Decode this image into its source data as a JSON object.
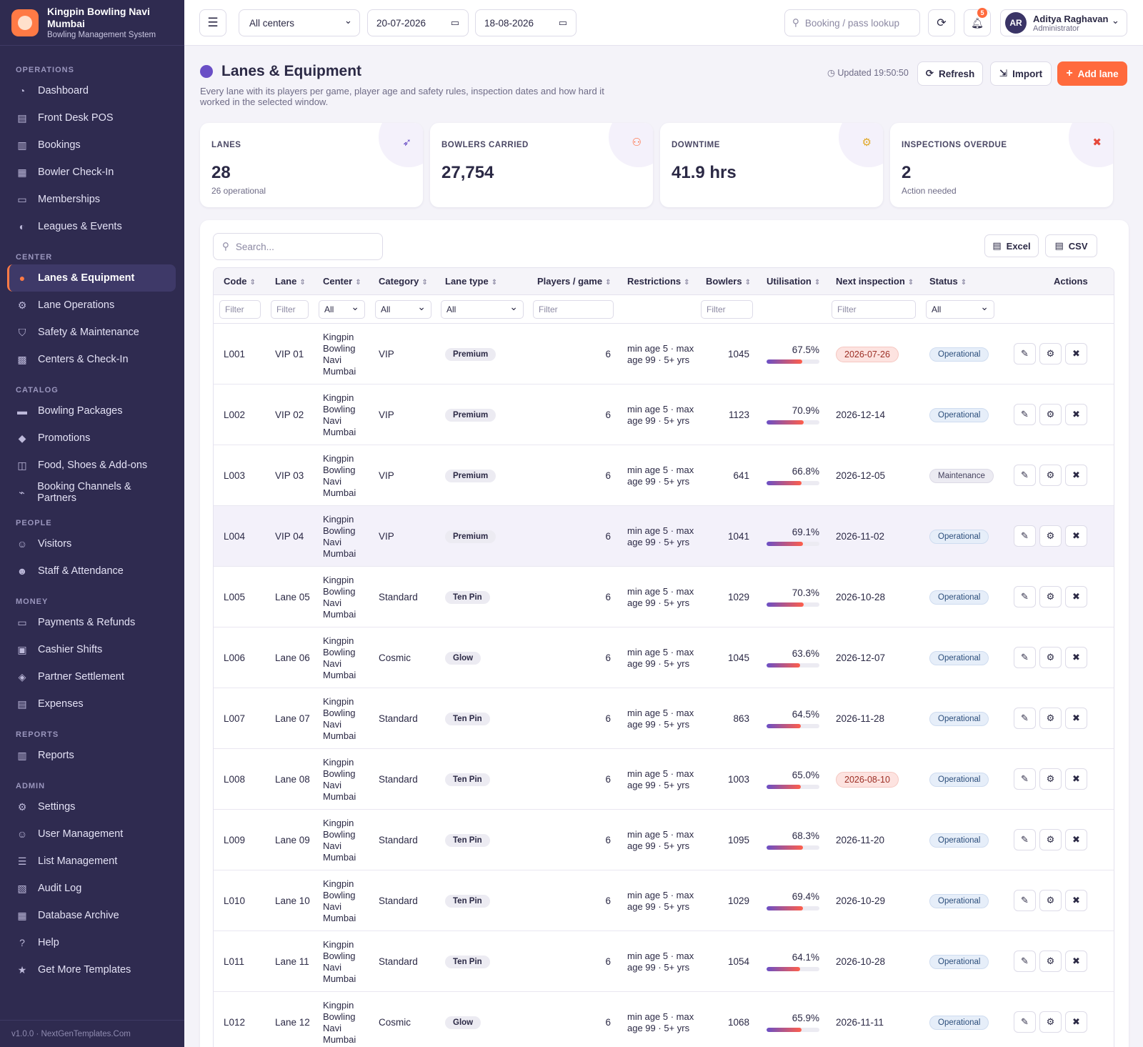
{
  "brand": {
    "name": "Kingpin Bowling Navi Mumbai",
    "subtitle": "Bowling Management System"
  },
  "nav": {
    "operations": {
      "label": "OPERATIONS",
      "items": [
        "Dashboard",
        "Front Desk POS",
        "Bookings",
        "Bowler Check-In",
        "Memberships",
        "Leagues & Events"
      ]
    },
    "center": {
      "label": "CENTER",
      "items": [
        "Lanes & Equipment",
        "Lane Operations",
        "Safety & Maintenance",
        "Centers & Check-In"
      ]
    },
    "catalog": {
      "label": "CATALOG",
      "items": [
        "Bowling Packages",
        "Promotions",
        "Food, Shoes & Add-ons",
        "Booking Channels & Partners"
      ]
    },
    "people": {
      "label": "PEOPLE",
      "items": [
        "Visitors",
        "Staff & Attendance"
      ]
    },
    "money": {
      "label": "MONEY",
      "items": [
        "Payments & Refunds",
        "Cashier Shifts",
        "Partner Settlement",
        "Expenses"
      ]
    },
    "reports": {
      "label": "REPORTS",
      "items": [
        "Reports"
      ]
    },
    "admin": {
      "label": "ADMIN",
      "items": [
        "Settings",
        "User Management",
        "List Management",
        "Audit Log",
        "Database Archive",
        "Help",
        "Get More Templates"
      ]
    }
  },
  "footer": "v1.0.0 · NextGenTemplates.Com",
  "topbar": {
    "center_select": "All centers",
    "date_from": "20-07-2026",
    "date_to": "18-08-2026",
    "lookup_placeholder": "Booking / pass lookup",
    "notif_count": "5",
    "user": {
      "initials": "AR",
      "name": "Aditya Raghavan",
      "role": "Administrator"
    }
  },
  "page": {
    "title": "Lanes & Equipment",
    "description": "Every lane with its players per game, player age and safety rules, inspection dates and how hard it worked in the selected window.",
    "updated": "Updated 19:50:50",
    "refresh": "Refresh",
    "import": "Import",
    "add": "Add lane"
  },
  "kpis": [
    {
      "label": "LANES",
      "value": "28",
      "sub": "26 operational",
      "icon": "rocket-icon",
      "color": "#6a4fc6"
    },
    {
      "label": "BOWLERS CARRIED",
      "value": "27,754",
      "sub": "",
      "icon": "users-icon",
      "color": "#ff6a3d"
    },
    {
      "label": "DOWNTIME",
      "value": "41.9 hrs",
      "sub": "",
      "icon": "gears-icon",
      "color": "#e0a92a"
    },
    {
      "label": "INSPECTIONS OVERDUE",
      "value": "2",
      "sub": "Action needed",
      "icon": "tools-icon",
      "color": "#e5483b"
    }
  ],
  "table": {
    "search_placeholder": "Search...",
    "excel": "Excel",
    "csv": "CSV",
    "headers": {
      "code": "Code",
      "lane": "Lane",
      "center": "Center",
      "category": "Category",
      "lane_type": "Lane type",
      "players": "Players / game",
      "restrictions": "Restrictions",
      "bowlers": "Bowlers",
      "utilisation": "Utilisation",
      "next_inspection": "Next inspection",
      "status": "Status",
      "actions": "Actions"
    },
    "filters": {
      "text": "Filter",
      "all": "All"
    },
    "rows": [
      {
        "code": "L001",
        "lane": "VIP 01",
        "center": "Kingpin Bowling Navi Mumbai",
        "category": "VIP",
        "type": "Premium",
        "players": "6",
        "restr": "min age 5 · max age 99 · 5+ yrs",
        "bowlers": "1045",
        "util": "67.5%",
        "util_v": 67.5,
        "insp": "2026-07-26",
        "overdue": true,
        "status": "Operational"
      },
      {
        "code": "L002",
        "lane": "VIP 02",
        "center": "Kingpin Bowling Navi Mumbai",
        "category": "VIP",
        "type": "Premium",
        "players": "6",
        "restr": "min age 5 · max age 99 · 5+ yrs",
        "bowlers": "1123",
        "util": "70.9%",
        "util_v": 70.9,
        "insp": "2026-12-14",
        "overdue": false,
        "status": "Operational"
      },
      {
        "code": "L003",
        "lane": "VIP 03",
        "center": "Kingpin Bowling Navi Mumbai",
        "category": "VIP",
        "type": "Premium",
        "players": "6",
        "restr": "min age 5 · max age 99 · 5+ yrs",
        "bowlers": "641",
        "util": "66.8%",
        "util_v": 66.8,
        "insp": "2026-12-05",
        "overdue": false,
        "status": "Maintenance"
      },
      {
        "code": "L004",
        "lane": "VIP 04",
        "center": "Kingpin Bowling Navi Mumbai",
        "category": "VIP",
        "type": "Premium",
        "players": "6",
        "restr": "min age 5 · max age 99 · 5+ yrs",
        "bowlers": "1041",
        "util": "69.1%",
        "util_v": 69.1,
        "insp": "2026-11-02",
        "overdue": false,
        "status": "Operational"
      },
      {
        "code": "L005",
        "lane": "Lane 05",
        "center": "Kingpin Bowling Navi Mumbai",
        "category": "Standard",
        "type": "Ten Pin",
        "players": "6",
        "restr": "min age 5 · max age 99 · 5+ yrs",
        "bowlers": "1029",
        "util": "70.3%",
        "util_v": 70.3,
        "insp": "2026-10-28",
        "overdue": false,
        "status": "Operational"
      },
      {
        "code": "L006",
        "lane": "Lane 06",
        "center": "Kingpin Bowling Navi Mumbai",
        "category": "Cosmic",
        "type": "Glow",
        "players": "6",
        "restr": "min age 5 · max age 99 · 5+ yrs",
        "bowlers": "1045",
        "util": "63.6%",
        "util_v": 63.6,
        "insp": "2026-12-07",
        "overdue": false,
        "status": "Operational"
      },
      {
        "code": "L007",
        "lane": "Lane 07",
        "center": "Kingpin Bowling Navi Mumbai",
        "category": "Standard",
        "type": "Ten Pin",
        "players": "6",
        "restr": "min age 5 · max age 99 · 5+ yrs",
        "bowlers": "863",
        "util": "64.5%",
        "util_v": 64.5,
        "insp": "2026-11-28",
        "overdue": false,
        "status": "Operational"
      },
      {
        "code": "L008",
        "lane": "Lane 08",
        "center": "Kingpin Bowling Navi Mumbai",
        "category": "Standard",
        "type": "Ten Pin",
        "players": "6",
        "restr": "min age 5 · max age 99 · 5+ yrs",
        "bowlers": "1003",
        "util": "65.0%",
        "util_v": 65.0,
        "insp": "2026-08-10",
        "overdue": true,
        "status": "Operational"
      },
      {
        "code": "L009",
        "lane": "Lane 09",
        "center": "Kingpin Bowling Navi Mumbai",
        "category": "Standard",
        "type": "Ten Pin",
        "players": "6",
        "restr": "min age 5 · max age 99 · 5+ yrs",
        "bowlers": "1095",
        "util": "68.3%",
        "util_v": 68.3,
        "insp": "2026-11-20",
        "overdue": false,
        "status": "Operational"
      },
      {
        "code": "L010",
        "lane": "Lane 10",
        "center": "Kingpin Bowling Navi Mumbai",
        "category": "Standard",
        "type": "Ten Pin",
        "players": "6",
        "restr": "min age 5 · max age 99 · 5+ yrs",
        "bowlers": "1029",
        "util": "69.4%",
        "util_v": 69.4,
        "insp": "2026-10-29",
        "overdue": false,
        "status": "Operational"
      },
      {
        "code": "L011",
        "lane": "Lane 11",
        "center": "Kingpin Bowling Navi Mumbai",
        "category": "Standard",
        "type": "Ten Pin",
        "players": "6",
        "restr": "min age 5 · max age 99 · 5+ yrs",
        "bowlers": "1054",
        "util": "64.1%",
        "util_v": 64.1,
        "insp": "2026-10-28",
        "overdue": false,
        "status": "Operational"
      },
      {
        "code": "L012",
        "lane": "Lane 12",
        "center": "Kingpin Bowling Navi Mumbai",
        "category": "Cosmic",
        "type": "Glow",
        "players": "6",
        "restr": "min age 5 · max age 99 · 5+ yrs",
        "bowlers": "1068",
        "util": "65.9%",
        "util_v": 65.9,
        "insp": "2026-11-11",
        "overdue": false,
        "status": "Operational"
      }
    ]
  }
}
